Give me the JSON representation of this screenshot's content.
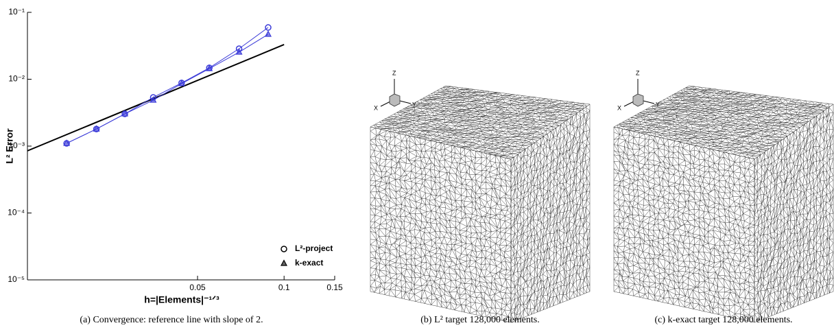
{
  "chart_data": {
    "type": "line",
    "x_label": "h=|Elements|⁻¹ᐟ³",
    "y_label": "L² Error",
    "log_x": true,
    "log_y": true,
    "xlim": [
      0.0128,
      0.15
    ],
    "ylim": [
      1e-05,
      0.1
    ],
    "xticks": [
      0.05,
      0.1,
      0.15
    ],
    "yticks": [
      {
        "value": 1e-05,
        "label": "10⁻⁵"
      },
      {
        "value": 0.0001,
        "label": "10⁻⁴"
      },
      {
        "value": 0.001,
        "label": "10⁻³"
      },
      {
        "value": 0.01,
        "label": "10⁻²"
      },
      {
        "value": 0.1,
        "label": "10⁻¹"
      }
    ],
    "x": [
      0.01752,
      0.02224,
      0.02793,
      0.03506,
      0.04401,
      0.05495,
      0.06973,
      0.08804
    ],
    "series": [
      {
        "name": "L²-project",
        "marker": "circle",
        "color": "#3a3ad8",
        "values": [
          0.0011,
          0.0018,
          0.00303,
          0.00535,
          0.0088,
          0.0148,
          0.0286,
          0.0594
        ]
      },
      {
        "name": "k-exact",
        "marker": "triangle",
        "color": "#3a3ad8",
        "values": [
          0.0011,
          0.0018,
          0.00303,
          0.00486,
          0.0086,
          0.0144,
          0.0254,
          0.047
        ]
      }
    ],
    "reference_line": {
      "x": [
        0.0128,
        0.1
      ],
      "values": [
        0.00085,
        0.033
      ],
      "color": "#000000"
    },
    "legend": "lower right"
  },
  "caption_a": "(a) Convergence: reference line with slope of 2.",
  "panels": [
    {
      "caption": "(b) L² target 128,000 elements.",
      "axis_labels": [
        "Z",
        "X",
        "Y"
      ]
    },
    {
      "caption": "(c) k-exact target 128,000 elements.",
      "axis_labels": [
        "Z",
        "X",
        "Y"
      ]
    }
  ]
}
